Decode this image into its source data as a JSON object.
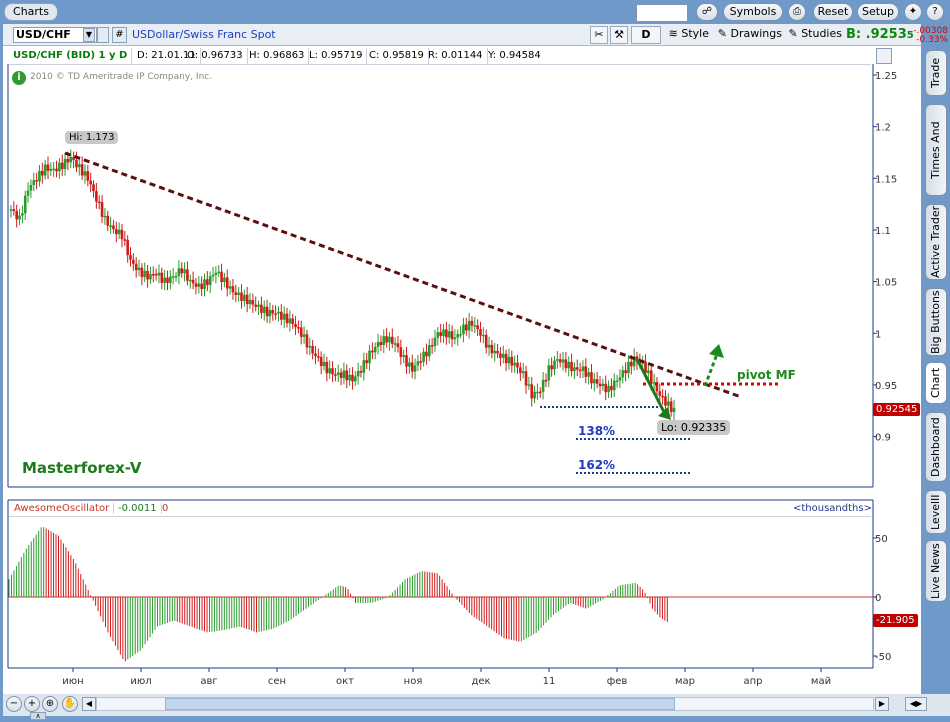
{
  "window": {
    "tab": "Charts"
  },
  "topbar": {
    "symbols_label": "Symbols",
    "reset_label": "Reset",
    "setup_label": "Setup",
    "bid_label": "B:",
    "bid_value": ".9253",
    "bid_suffix": "5",
    "change_abs": "-.00308",
    "change_pct": "-0.33%"
  },
  "toolbar": {
    "symbol": "USD/CHF",
    "description": "USDollar/Swiss Franc Spot",
    "period_label": "D",
    "style_label": "Style",
    "drawings_label": "Drawings",
    "studies_label": "Studies",
    "hash_label": "#"
  },
  "info_bar": {
    "title": "USD/CHF (BID) 1 y D",
    "date": "D: 21.01.11",
    "open": "O: 0.96733",
    "high": "H: 0.96863",
    "low": "L: 0.95719",
    "close": "C: 0.95819",
    "range": "R: 0.01144",
    "y": "Y: 0.94584"
  },
  "copyright": "2010 © TD Ameritrade IP Company, Inc.",
  "watermark": "Masterforex-V",
  "annotations": {
    "hi_label": "Hi: 1.173",
    "lo_label": "Lo: 0.92335",
    "pivot_label": "pivot MF",
    "fib_138": "138%",
    "fib_162": "162%",
    "price_tag": "0.92545"
  },
  "indicator": {
    "name": "AwesomeOscillator",
    "value": "-0.0011",
    "zero": "0",
    "unit_label": "<thousandths>",
    "value_tag": "-21.905"
  },
  "sidebar": {
    "tabs": [
      "Trade",
      "Times And Sales",
      "Active Trader",
      "Big Buttons",
      "Chart",
      "Dashboard",
      "LevelII",
      "Live News"
    ]
  },
  "chart_data": [
    {
      "type": "candlestick",
      "title": "USD/CHF (BID) 1 y D",
      "ylim": [
        0.86,
        1.26
      ],
      "y_ticks": [
        "1.25",
        "1.2",
        "1.15",
        "1.1",
        "1.05",
        "1",
        "0.95",
        "0.9"
      ],
      "x_ticks": [
        "июн",
        "июл",
        "авг",
        "сен",
        "окт",
        "ноя",
        "дек",
        "11",
        "фев",
        "мар",
        "апр",
        "май"
      ],
      "grid": false,
      "series": [
        {
          "name": "USD/CHF",
          "close_path": [
            [
              0,
              1.12
            ],
            [
              3,
              1.11
            ],
            [
              6,
              1.14
            ],
            [
              9,
              1.15
            ],
            [
              12,
              1.16
            ],
            [
              15,
              1.158
            ],
            [
              18,
              1.163
            ],
            [
              21,
              1.17
            ],
            [
              24,
              1.16
            ],
            [
              27,
              1.15
            ],
            [
              30,
              1.13
            ],
            [
              33,
              1.11
            ],
            [
              36,
              1.1
            ],
            [
              39,
              1.095
            ],
            [
              42,
              1.07
            ],
            [
              45,
              1.06
            ],
            [
              48,
              1.055
            ],
            [
              51,
              1.058
            ],
            [
              54,
              1.05
            ],
            [
              57,
              1.055
            ],
            [
              60,
              1.062
            ],
            [
              63,
              1.05
            ],
            [
              66,
              1.045
            ],
            [
              69,
              1.05
            ],
            [
              72,
              1.06
            ],
            [
              75,
              1.05
            ],
            [
              78,
              1.04
            ],
            [
              81,
              1.035
            ],
            [
              84,
              1.03
            ],
            [
              87,
              1.025
            ],
            [
              90,
              1.02
            ],
            [
              93,
              1.02
            ],
            [
              96,
              1.015
            ],
            [
              99,
              1.01
            ],
            [
              102,
              1.0
            ],
            [
              105,
              0.985
            ],
            [
              108,
              0.975
            ],
            [
              111,
              0.965
            ],
            [
              114,
              0.96
            ],
            [
              117,
              0.96
            ],
            [
              120,
              0.955
            ],
            [
              123,
              0.965
            ],
            [
              126,
              0.98
            ],
            [
              129,
              0.99
            ],
            [
              132,
              0.995
            ],
            [
              135,
              0.99
            ],
            [
              138,
              0.975
            ],
            [
              141,
              0.965
            ],
            [
              144,
              0.975
            ],
            [
              147,
              0.985
            ],
            [
              150,
              1.0
            ],
            [
              153,
              1.0
            ],
            [
              156,
              0.995
            ],
            [
              159,
              1.005
            ],
            [
              162,
              1.01
            ],
            [
              165,
              1.0
            ],
            [
              168,
              0.985
            ],
            [
              171,
              0.98
            ],
            [
              174,
              0.975
            ],
            [
              177,
              0.97
            ],
            [
              180,
              0.96
            ],
            [
              183,
              0.94
            ],
            [
              186,
              0.945
            ],
            [
              189,
              0.965
            ],
            [
              192,
              0.975
            ],
            [
              195,
              0.97
            ],
            [
              198,
              0.965
            ],
            [
              201,
              0.965
            ],
            [
              204,
              0.955
            ],
            [
              207,
              0.95
            ],
            [
              210,
              0.945
            ],
            [
              213,
              0.955
            ],
            [
              216,
              0.965
            ],
            [
              219,
              0.975
            ],
            [
              222,
              0.97
            ],
            [
              225,
              0.955
            ],
            [
              228,
              0.94
            ],
            [
              231,
              0.93
            ],
            [
              233,
              0.925
            ]
          ]
        }
      ],
      "annotations": {
        "hi": 1.173,
        "lo": 0.92335,
        "pivot": 0.952,
        "fib_138": 0.9,
        "fib_162": 0.878,
        "last": 0.92545
      }
    },
    {
      "type": "bar",
      "title": "AwesomeOscillator",
      "ylabel": "<thousandths>",
      "ylim": [
        -60,
        70
      ],
      "y_ticks": [
        "50",
        "0",
        "-50"
      ],
      "series": [
        {
          "name": "AwesomeOscillator",
          "path": [
            [
              0,
              15
            ],
            [
              10,
              40
            ],
            [
              20,
              60
            ],
            [
              30,
              52
            ],
            [
              40,
              30
            ],
            [
              50,
              0
            ],
            [
              60,
              -30
            ],
            [
              70,
              -55
            ],
            [
              80,
              -45
            ],
            [
              90,
              -25
            ],
            [
              100,
              -20
            ],
            [
              110,
              -25
            ],
            [
              120,
              -30
            ],
            [
              130,
              -28
            ],
            [
              140,
              -25
            ],
            [
              150,
              -30
            ],
            [
              160,
              -27
            ],
            [
              170,
              -20
            ],
            [
              180,
              -10
            ],
            [
              190,
              0
            ],
            [
              200,
              10
            ],
            [
              205,
              8
            ],
            [
              210,
              -5
            ],
            [
              220,
              -5
            ],
            [
              230,
              0
            ],
            [
              240,
              15
            ],
            [
              250,
              22
            ],
            [
              260,
              20
            ],
            [
              270,
              0
            ],
            [
              280,
              -15
            ],
            [
              290,
              -25
            ],
            [
              300,
              -35
            ],
            [
              310,
              -38
            ],
            [
              320,
              -30
            ],
            [
              330,
              -15
            ],
            [
              340,
              -5
            ],
            [
              350,
              -10
            ],
            [
              360,
              -2
            ],
            [
              370,
              10
            ],
            [
              380,
              12
            ],
            [
              385,
              5
            ],
            [
              390,
              -10
            ],
            [
              395,
              -18
            ],
            [
              400,
              -22
            ]
          ]
        }
      ]
    }
  ]
}
